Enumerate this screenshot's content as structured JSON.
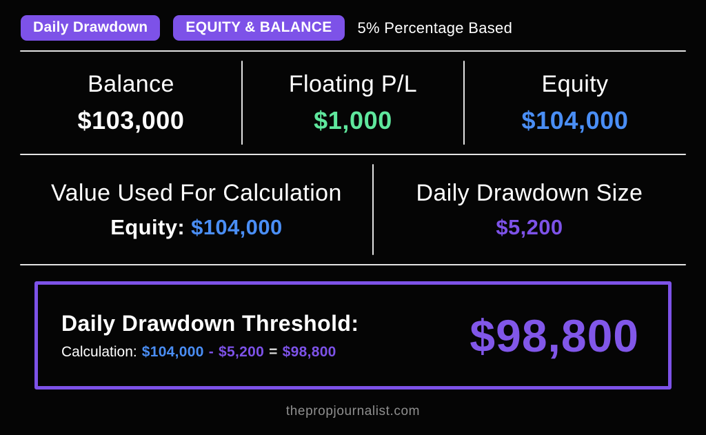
{
  "colors": {
    "background": "#050505",
    "accent_purple": "#7d52e8",
    "big_purple": "#8157e9",
    "blue": "#4a8ef5",
    "green": "#5fe79d",
    "white": "#ffffff",
    "divider": "#e4e4e4",
    "equals_gray": "#dcdcdc",
    "footer_gray": "#8f8f8f"
  },
  "header": {
    "badges": [
      {
        "label": "Daily Drawdown"
      },
      {
        "label": "EQUITY & BALANCE"
      }
    ],
    "subtitle": "5% Percentage Based"
  },
  "stats_row1": {
    "cells": [
      {
        "label": "Balance",
        "value": "$103,000"
      },
      {
        "label": "Floating P/L",
        "value": "$1,000"
      },
      {
        "label": "Equity",
        "value": "$104,000"
      }
    ]
  },
  "stats_row2": {
    "left": {
      "label": "Value Used For Calculation",
      "value_key": "Equity:",
      "value": "$104,000"
    },
    "right": {
      "label": "Daily Drawdown Size",
      "value": "$5,200"
    }
  },
  "threshold": {
    "title": "Daily Drawdown Threshold:",
    "calculation": {
      "label": "Calculation:",
      "minuend": "$104,000",
      "minus": "-",
      "subtrahend": "$5,200",
      "equals": "=",
      "result": "$98,800"
    },
    "big_value": "$98,800"
  },
  "footer": {
    "website": "thepropjournalist.com"
  }
}
